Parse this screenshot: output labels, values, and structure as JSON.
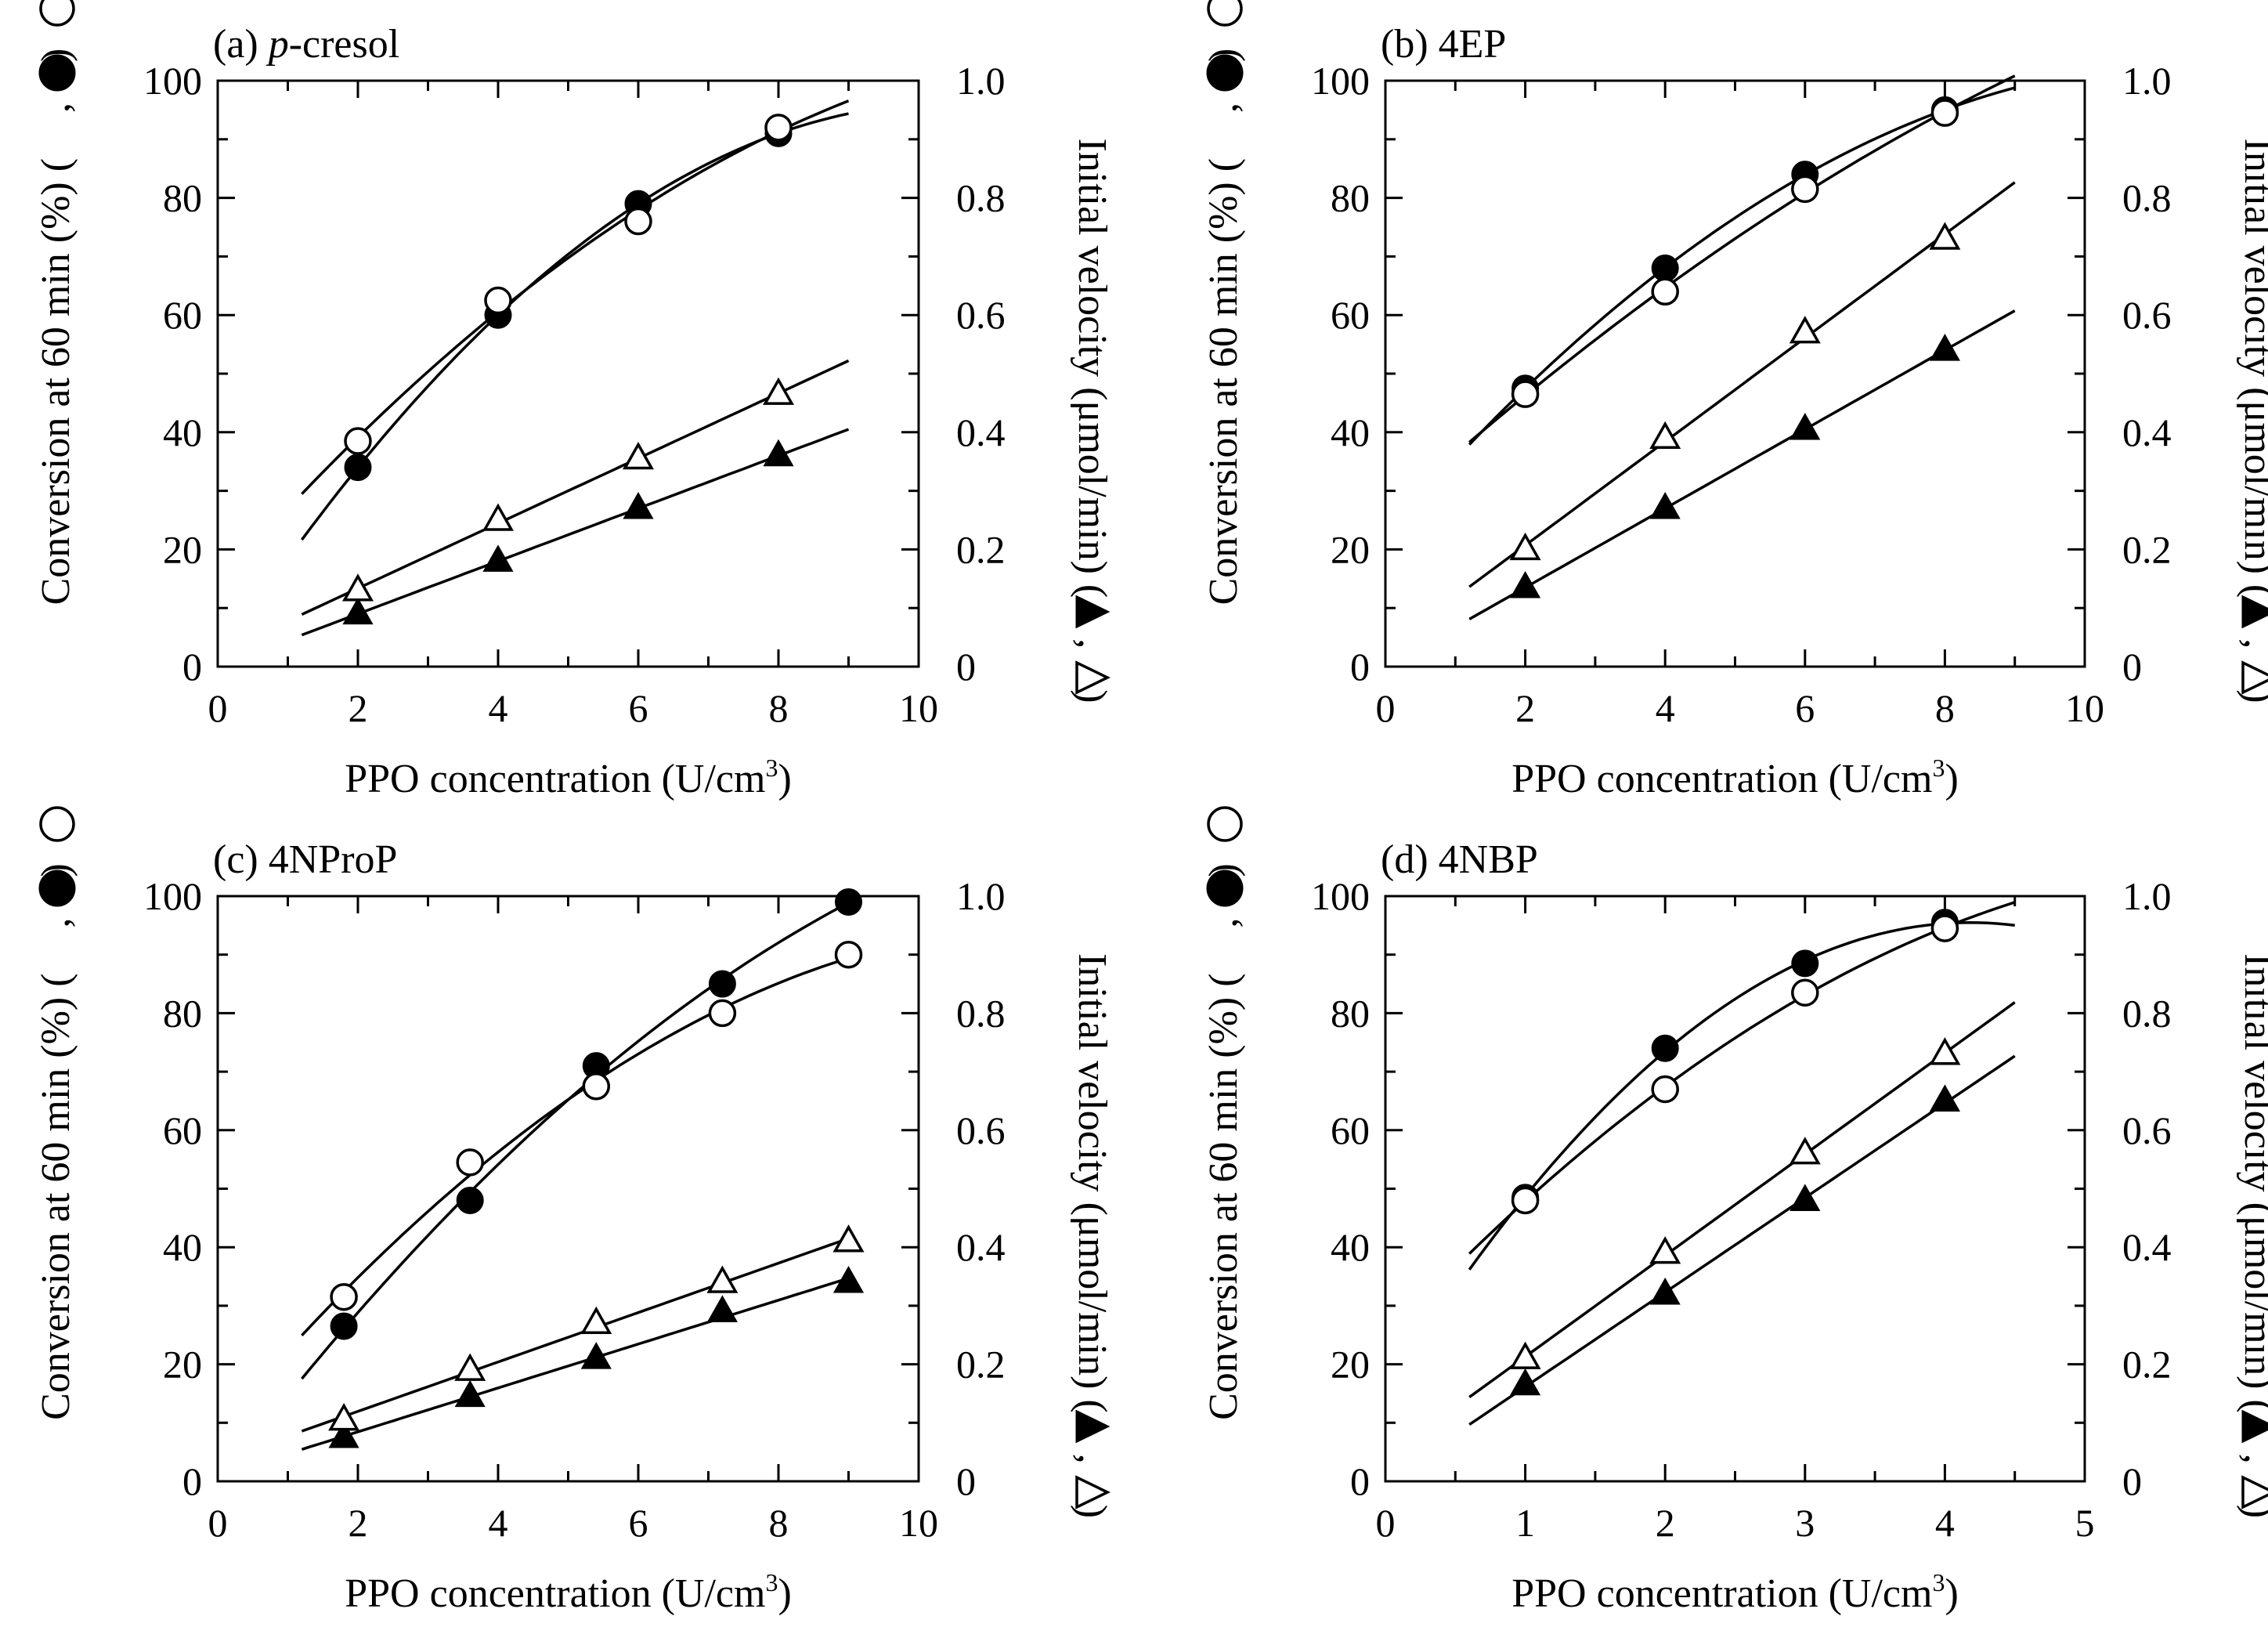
{
  "figure": {
    "xlabel_main": "PPO concentration (U/cm",
    "xlabel_sup": "3",
    "xlabel_close": ")",
    "ylabel_left": "Conversion at 60 min (%) (",
    "ylabel_left_sep": ",",
    "ylabel_left_close": ")",
    "ylabel_right": "Initial velocity (μmol/min) (",
    "ylabel_right_sep": ",",
    "ylabel_right_close": ")",
    "legend_symbols": {
      "filled_circle": "Conversion (●)",
      "open_circle": "Conversion (○)",
      "filled_triangle": "Initial velocity (▲)",
      "open_triangle": "Initial velocity (△)"
    }
  },
  "chart_data": [
    {
      "type": "scatter",
      "title_prefix": "(a) ",
      "title_italic": "p",
      "title_rest": "-cresol",
      "xlim": [
        0,
        10
      ],
      "xticks": [
        "0",
        "2",
        "4",
        "6",
        "8",
        "10"
      ],
      "ylim_left": [
        0,
        100
      ],
      "yticks_left": [
        "0",
        "20",
        "40",
        "60",
        "80",
        "100"
      ],
      "ylim_right": [
        0,
        1.0
      ],
      "yticks_right": [
        "0",
        "0.2",
        "0.4",
        "0.6",
        "0.8",
        "1.0"
      ],
      "series": [
        {
          "name": "conversion_filled",
          "marker": "filled-circle",
          "axis": "left",
          "x": [
            2,
            4,
            6,
            8
          ],
          "y": [
            34,
            60,
            79,
            91
          ]
        },
        {
          "name": "conversion_open",
          "marker": "open-circle",
          "axis": "left",
          "x": [
            2,
            4,
            6,
            8
          ],
          "y": [
            38.5,
            62.5,
            76,
            92
          ]
        },
        {
          "name": "velocity_filled",
          "marker": "filled-triangle",
          "axis": "right",
          "x": [
            2,
            4,
            6,
            8
          ],
          "y": [
            0.09,
            0.18,
            0.27,
            0.36
          ]
        },
        {
          "name": "velocity_open",
          "marker": "open-triangle",
          "axis": "right",
          "x": [
            2,
            4,
            6,
            8
          ],
          "y": [
            0.13,
            0.25,
            0.355,
            0.465
          ]
        }
      ]
    },
    {
      "type": "scatter",
      "title_prefix": "(b) ",
      "title_italic": "",
      "title_rest": "4EP",
      "xlim": [
        0,
        10
      ],
      "xticks": [
        "0",
        "2",
        "4",
        "6",
        "8",
        "10"
      ],
      "ylim_left": [
        0,
        100
      ],
      "yticks_left": [
        "0",
        "20",
        "40",
        "60",
        "80",
        "100"
      ],
      "ylim_right": [
        0,
        1.0
      ],
      "yticks_right": [
        "0",
        "0.2",
        "0.4",
        "0.6",
        "0.8",
        "1.0"
      ],
      "series": [
        {
          "name": "conversion_filled",
          "marker": "filled-circle",
          "axis": "left",
          "x": [
            2,
            4,
            6,
            8
          ],
          "y": [
            47.5,
            68,
            84,
            95
          ]
        },
        {
          "name": "conversion_open",
          "marker": "open-circle",
          "axis": "left",
          "x": [
            2,
            4,
            6,
            8
          ],
          "y": [
            46.5,
            64,
            81.5,
            94.5
          ]
        },
        {
          "name": "velocity_filled",
          "marker": "filled-triangle",
          "axis": "right",
          "x": [
            2,
            4,
            6,
            8
          ],
          "y": [
            0.135,
            0.27,
            0.405,
            0.54
          ]
        },
        {
          "name": "velocity_open",
          "marker": "open-triangle",
          "axis": "right",
          "x": [
            2,
            4,
            6,
            8
          ],
          "y": [
            0.2,
            0.39,
            0.57,
            0.73
          ]
        }
      ]
    },
    {
      "type": "scatter",
      "title_prefix": "(c) ",
      "title_italic": "",
      "title_rest": "4NProP",
      "xlim": [
        0,
        10
      ],
      "xticks": [
        "0",
        "2",
        "4",
        "6",
        "8",
        "10"
      ],
      "ylim_left": [
        0,
        100
      ],
      "yticks_left": [
        "0",
        "20",
        "40",
        "60",
        "80",
        "100"
      ],
      "ylim_right": [
        0,
        1.0
      ],
      "yticks_right": [
        "0",
        "0.2",
        "0.4",
        "0.6",
        "0.8",
        "1.0"
      ],
      "series": [
        {
          "name": "conversion_filled",
          "marker": "filled-circle",
          "axis": "left",
          "x": [
            1.8,
            3.6,
            5.4,
            7.2,
            9.0
          ],
          "y": [
            26.5,
            48,
            71,
            85,
            99
          ]
        },
        {
          "name": "conversion_open",
          "marker": "open-circle",
          "axis": "left",
          "x": [
            1.8,
            3.6,
            5.4,
            7.2,
            9.0
          ],
          "y": [
            31.5,
            54.5,
            67.5,
            80,
            90
          ]
        },
        {
          "name": "velocity_filled",
          "marker": "filled-triangle",
          "axis": "right",
          "x": [
            1.8,
            3.6,
            5.4,
            7.2,
            9.0
          ],
          "y": [
            0.075,
            0.145,
            0.21,
            0.29,
            0.34
          ]
        },
        {
          "name": "velocity_open",
          "marker": "open-triangle",
          "axis": "right",
          "x": [
            1.8,
            3.6,
            5.4,
            7.2,
            9.0
          ],
          "y": [
            0.105,
            0.19,
            0.27,
            0.34,
            0.41
          ]
        }
      ]
    },
    {
      "type": "scatter",
      "title_prefix": "(d) ",
      "title_italic": "",
      "title_rest": "4NBP",
      "xlim": [
        0,
        5
      ],
      "xticks": [
        "0",
        "1",
        "2",
        "3",
        "4",
        "5"
      ],
      "ylim_left": [
        0,
        100
      ],
      "yticks_left": [
        "0",
        "20",
        "40",
        "60",
        "80",
        "100"
      ],
      "ylim_right": [
        0,
        1.0
      ],
      "yticks_right": [
        "0",
        "0.2",
        "0.4",
        "0.6",
        "0.8",
        "1.0"
      ],
      "series": [
        {
          "name": "conversion_filled",
          "marker": "filled-circle",
          "axis": "left",
          "x": [
            1,
            2,
            3,
            4
          ],
          "y": [
            48.5,
            74,
            88.5,
            95.5
          ]
        },
        {
          "name": "conversion_open",
          "marker": "open-circle",
          "axis": "left",
          "x": [
            1,
            2,
            3,
            4
          ],
          "y": [
            48,
            67,
            83.5,
            94.5
          ]
        },
        {
          "name": "velocity_filled",
          "marker": "filled-triangle",
          "axis": "right",
          "x": [
            1,
            2,
            3,
            4
          ],
          "y": [
            0.165,
            0.32,
            0.48,
            0.65
          ]
        },
        {
          "name": "velocity_open",
          "marker": "open-triangle",
          "axis": "right",
          "x": [
            1,
            2,
            3,
            4
          ],
          "y": [
            0.21,
            0.39,
            0.56,
            0.73
          ]
        }
      ]
    }
  ]
}
